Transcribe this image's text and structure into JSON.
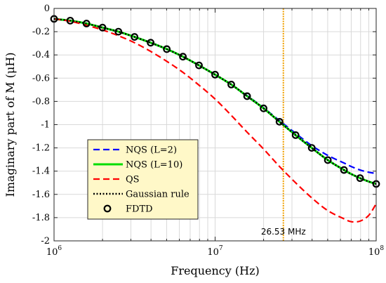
{
  "chart_data": {
    "type": "line",
    "title": "",
    "xlabel": "Frequency (Hz)",
    "ylabel": "Imaginary part of M (μH)",
    "xscale": "log",
    "xlim": [
      1000000,
      100000000
    ],
    "ylim": [
      -2,
      0
    ],
    "grid": true,
    "legend_position": "bottom-left",
    "x_ticks": [
      {
        "value": 1000000,
        "base": "10",
        "exp": "6"
      },
      {
        "value": 10000000,
        "base": "10",
        "exp": "7"
      },
      {
        "value": 100000000,
        "base": "10",
        "exp": "8"
      }
    ],
    "y_ticks": [
      {
        "value": 0,
        "label": "0"
      },
      {
        "value": -0.2,
        "label": "-0.2"
      },
      {
        "value": -0.4,
        "label": "-0.4"
      },
      {
        "value": -0.6,
        "label": "-0.6"
      },
      {
        "value": -0.8,
        "label": "-0.8"
      },
      {
        "value": -1,
        "label": "-1"
      },
      {
        "value": -1.2,
        "label": "-1.2"
      },
      {
        "value": -1.4,
        "label": "-1.4"
      },
      {
        "value": -1.6,
        "label": "-1.6"
      },
      {
        "value": -1.8,
        "label": "-1.8"
      },
      {
        "value": -2,
        "label": "-2"
      }
    ],
    "x": [
      1000000,
      1260000,
      1590000,
      2000000,
      2510000,
      3160000,
      3980000,
      5010000,
      6310000,
      7940000,
      10000000,
      12600000,
      15800000,
      20000000,
      25100000,
      31600000,
      39800000,
      50100000,
      63100000,
      70000000,
      79400000,
      90000000,
      100000000
    ],
    "series": [
      {
        "name": "NQS (L=2)",
        "color": "#0000ff",
        "dash": "dashed",
        "values": [
          -0.09,
          -0.105,
          -0.13,
          -0.165,
          -0.2,
          -0.245,
          -0.295,
          -0.35,
          -0.415,
          -0.49,
          -0.57,
          -0.655,
          -0.75,
          -0.855,
          -0.965,
          -1.075,
          -1.18,
          -1.265,
          -1.33,
          -1.36,
          -1.39,
          -1.41,
          -1.42
        ]
      },
      {
        "name": "NQS (L=10)",
        "color": "#00dd00",
        "dash": "solid",
        "values": [
          -0.09,
          -0.105,
          -0.13,
          -0.165,
          -0.2,
          -0.245,
          -0.295,
          -0.35,
          -0.415,
          -0.49,
          -0.57,
          -0.655,
          -0.755,
          -0.86,
          -0.975,
          -1.09,
          -1.2,
          -1.305,
          -1.39,
          -1.425,
          -1.46,
          -1.49,
          -1.51
        ]
      },
      {
        "name": "QS",
        "color": "#ff0000",
        "dash": "dashed",
        "values": [
          -0.09,
          -0.11,
          -0.145,
          -0.185,
          -0.235,
          -0.295,
          -0.37,
          -0.455,
          -0.55,
          -0.66,
          -0.78,
          -0.92,
          -1.065,
          -1.21,
          -1.36,
          -1.5,
          -1.63,
          -1.74,
          -1.81,
          -1.835,
          -1.83,
          -1.78,
          -1.68
        ]
      },
      {
        "name": "Gaussian rule",
        "color": "#000000",
        "dash": "dotted",
        "values": [
          -0.09,
          -0.105,
          -0.13,
          -0.165,
          -0.2,
          -0.245,
          -0.295,
          -0.35,
          -0.415,
          -0.49,
          -0.57,
          -0.655,
          -0.755,
          -0.86,
          -0.975,
          -1.09,
          -1.2,
          -1.305,
          -1.39,
          -1.425,
          -1.46,
          -1.49,
          -1.51
        ]
      },
      {
        "name": "FDTD",
        "color": "#000000",
        "marker": "circle",
        "x": [
          1000000,
          1260000,
          1590000,
          2000000,
          2510000,
          3160000,
          3980000,
          5010000,
          6310000,
          7940000,
          10000000,
          12600000,
          15800000,
          20000000,
          25100000,
          31600000,
          39800000,
          50100000,
          63100000,
          79400000,
          100000000
        ],
        "values": [
          -0.09,
          -0.105,
          -0.13,
          -0.165,
          -0.2,
          -0.245,
          -0.295,
          -0.35,
          -0.415,
          -0.49,
          -0.57,
          -0.655,
          -0.755,
          -0.86,
          -0.975,
          -1.09,
          -1.2,
          -1.305,
          -1.39,
          -1.46,
          -1.51
        ]
      }
    ],
    "annotations": [
      {
        "label": "26.53 MHz",
        "x": 26530000,
        "color": "#f0a000"
      }
    ]
  }
}
